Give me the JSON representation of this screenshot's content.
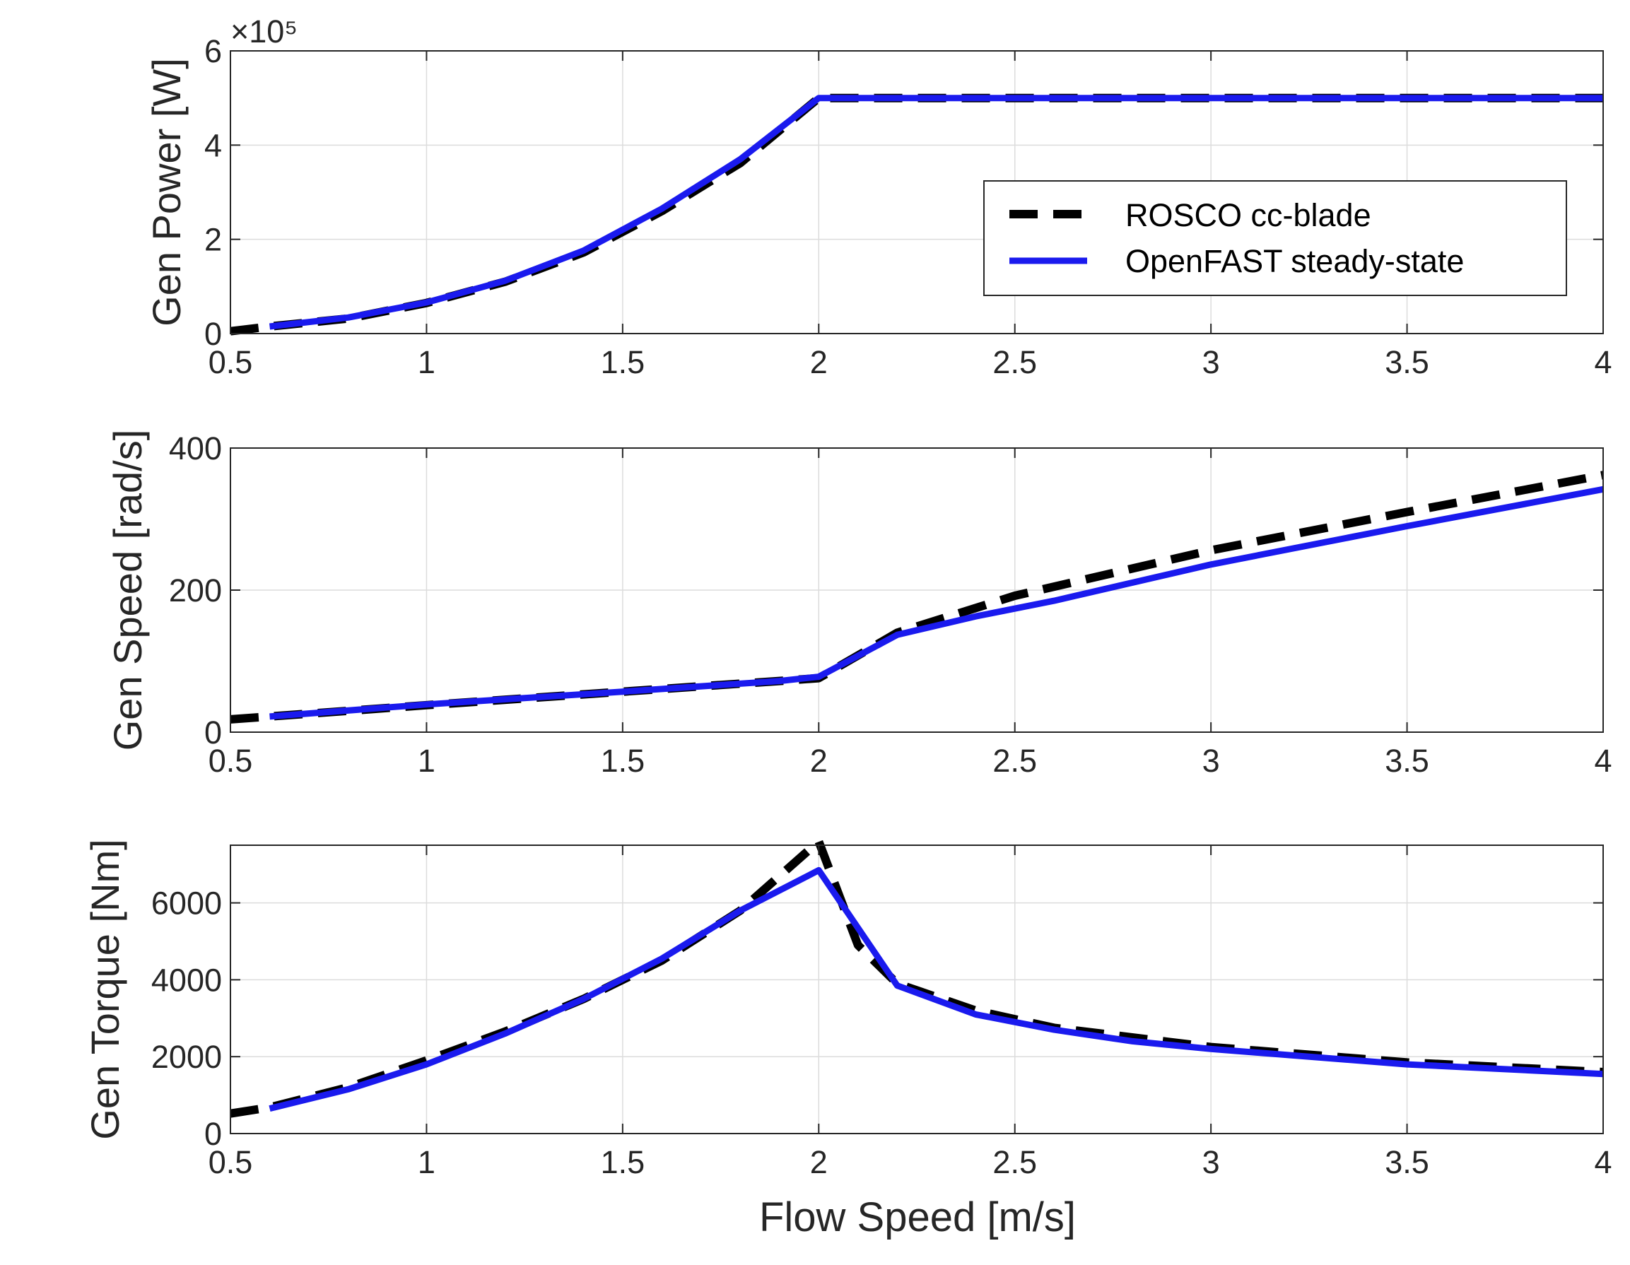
{
  "chart_data": {
    "type": "line",
    "xlabel": "Flow Speed [m/s]",
    "xlim": [
      0.5,
      4
    ],
    "x_ticks": [
      "0.5",
      "1",
      "1.5",
      "2",
      "2.5",
      "3",
      "3.5",
      "4"
    ],
    "grid": true,
    "legend": {
      "placement": "top-right of first panel",
      "entries": [
        "ROSCO cc-blade",
        "OpenFAST steady-state"
      ]
    },
    "colors": {
      "rosco": "#000000",
      "openfast": "#1a1aee"
    },
    "panels": [
      {
        "ylabel": "Gen Power [W]",
        "ylim": [
          0,
          6
        ],
        "y_exponent": "×10⁵",
        "y_ticks": [
          "0",
          "2",
          "4",
          "6"
        ],
        "series": [
          {
            "name": "ROSCO cc-blade",
            "style": "dashed",
            "x": [
              0.5,
              0.6,
              0.8,
              1.0,
              1.2,
              1.4,
              1.6,
              1.8,
              2.0,
              2.2,
              2.6,
              3.0,
              3.5,
              4.0
            ],
            "y": [
              0.05,
              0.15,
              0.32,
              0.65,
              1.1,
              1.72,
              2.6,
              3.62,
              5.0,
              5.0,
              5.0,
              5.0,
              5.0,
              5.0
            ]
          },
          {
            "name": "OpenFAST steady-state",
            "style": "solid",
            "x": [
              0.6,
              0.8,
              1.0,
              1.2,
              1.4,
              1.6,
              1.8,
              2.0,
              2.2,
              2.6,
              3.0,
              3.5,
              4.0
            ],
            "y": [
              0.15,
              0.34,
              0.66,
              1.12,
              1.76,
              2.65,
              3.7,
              5.0,
              5.0,
              5.0,
              5.0,
              5.0,
              5.0
            ]
          }
        ]
      },
      {
        "ylabel": "Gen Speed [rad/s]",
        "ylim": [
          0,
          400
        ],
        "y_ticks": [
          "0",
          "200",
          "400"
        ],
        "series": [
          {
            "name": "ROSCO cc-blade",
            "style": "dashed",
            "x": [
              0.5,
              1.0,
              1.5,
              1.9,
              2.0,
              2.2,
              2.5,
              3.0,
              3.5,
              4.0
            ],
            "y": [
              18,
              38,
              57,
              72,
              76,
              140,
              192,
              256,
              310,
              362
            ]
          },
          {
            "name": "OpenFAST steady-state",
            "style": "solid",
            "x": [
              0.6,
              1.0,
              1.5,
              1.9,
              2.0,
              2.2,
              2.4,
              2.6,
              3.0,
              3.5,
              4.0
            ],
            "y": [
              22,
              39,
              57,
              72,
              78,
              137,
              163,
              185,
              236,
              290,
              342
            ]
          }
        ]
      },
      {
        "ylabel": "Gen Torque [Nm]",
        "ylim": [
          0,
          7500
        ],
        "y_ticks": [
          "0",
          "2000",
          "4000",
          "6000"
        ],
        "series": [
          {
            "name": "ROSCO cc-blade",
            "style": "dashed",
            "x": [
              0.5,
              0.6,
              0.8,
              1.0,
              1.2,
              1.4,
              1.6,
              1.8,
              2.0,
              2.1,
              2.2,
              2.4,
              2.6,
              3.0,
              3.5,
              4.0
            ],
            "y": [
              520,
              680,
              1200,
              1900,
              2650,
              3500,
              4500,
              5800,
              7600,
              4900,
              3900,
              3200,
              2750,
              2250,
              1850,
              1600
            ]
          },
          {
            "name": "OpenFAST steady-state",
            "style": "solid",
            "x": [
              0.6,
              0.8,
              1.0,
              1.2,
              1.4,
              1.6,
              1.8,
              2.0,
              2.2,
              2.4,
              2.6,
              2.8,
              3.0,
              3.5,
              4.0
            ],
            "y": [
              650,
              1150,
              1800,
              2600,
              3500,
              4550,
              5800,
              6850,
              3850,
              3100,
              2700,
              2400,
              2200,
              1800,
              1550
            ]
          }
        ]
      }
    ]
  }
}
